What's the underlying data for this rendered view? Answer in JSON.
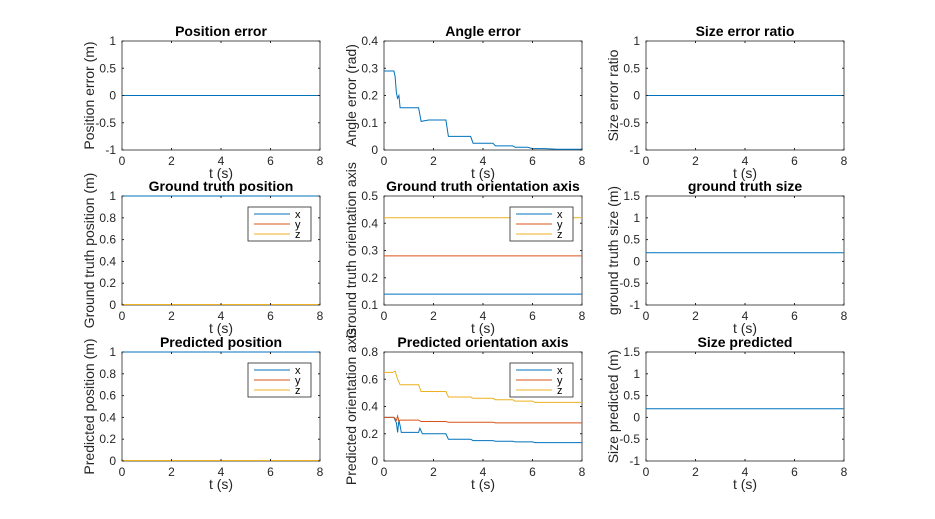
{
  "chart_data": [
    {
      "type": "line",
      "title": "Position error",
      "xlabel": "t (s)",
      "ylabel": "Position error (m)",
      "xlim": [
        0,
        8
      ],
      "ylim": [
        -1,
        1
      ],
      "xticks": [
        0,
        2,
        4,
        6,
        8
      ],
      "yticks": [
        -1,
        -0.5,
        0,
        0.5,
        1
      ],
      "series": [
        {
          "color": "#0072BD",
          "x": [
            0,
            8
          ],
          "y": [
            0,
            0
          ]
        }
      ]
    },
    {
      "type": "line",
      "title": "Angle error",
      "xlabel": "t (s)",
      "ylabel": "Angle error (rad)",
      "xlim": [
        0,
        8
      ],
      "ylim": [
        0,
        0.4
      ],
      "xticks": [
        0,
        2,
        4,
        6,
        8
      ],
      "yticks": [
        0,
        0.1,
        0.2,
        0.3,
        0.4
      ],
      "series": [
        {
          "color": "#0072BD",
          "x": [
            0,
            0.4,
            0.45,
            0.5,
            0.55,
            0.6,
            0.65,
            0.7,
            1.4,
            1.5,
            1.8,
            2.5,
            2.6,
            3.5,
            3.6,
            4.4,
            4.5,
            5.2,
            5.3,
            5.8,
            6.0,
            6.5,
            7.0,
            7.5,
            8.0
          ],
          "y": [
            0.29,
            0.29,
            0.27,
            0.21,
            0.19,
            0.2,
            0.155,
            0.155,
            0.155,
            0.105,
            0.11,
            0.11,
            0.05,
            0.05,
            0.025,
            0.025,
            0.015,
            0.015,
            0.01,
            0.01,
            0.005,
            0.005,
            0.003,
            0.003,
            0.003
          ]
        }
      ]
    },
    {
      "type": "line",
      "title": "Size error ratio",
      "xlabel": "t (s)",
      "ylabel": "Size error ratio",
      "xlim": [
        0,
        8
      ],
      "ylim": [
        -1,
        1
      ],
      "xticks": [
        0,
        2,
        4,
        6,
        8
      ],
      "yticks": [
        -1,
        -0.5,
        0,
        0.5,
        1
      ],
      "series": [
        {
          "color": "#0072BD",
          "x": [
            0,
            8
          ],
          "y": [
            0,
            0
          ]
        }
      ]
    },
    {
      "type": "line",
      "title": "Ground truth position",
      "xlabel": "t (s)",
      "ylabel": "Ground truth position (m)",
      "xlim": [
        0,
        8
      ],
      "ylim": [
        0,
        1
      ],
      "xticks": [
        0,
        2,
        4,
        6,
        8
      ],
      "yticks": [
        0,
        0.2,
        0.4,
        0.6,
        0.8,
        1
      ],
      "legend": "top-right",
      "series": [
        {
          "name": "x",
          "color": "#0072BD",
          "x": [
            0,
            8
          ],
          "y": [
            1,
            1
          ]
        },
        {
          "name": "y",
          "color": "#D95319",
          "x": [
            0,
            8
          ],
          "y": [
            0.005,
            0.005
          ]
        },
        {
          "name": "z",
          "color": "#EDB120",
          "x": [
            0,
            8
          ],
          "y": [
            0.005,
            0.005
          ]
        }
      ]
    },
    {
      "type": "line",
      "title": "Ground truth orientation axis",
      "xlabel": "t (s)",
      "ylabel": "Ground truth orientation axis",
      "xlim": [
        0,
        8
      ],
      "ylim": [
        0.1,
        0.5
      ],
      "xticks": [
        0,
        2,
        4,
        6,
        8
      ],
      "yticks": [
        0.1,
        0.2,
        0.3,
        0.4,
        0.5
      ],
      "legend": "top-right",
      "series": [
        {
          "name": "x",
          "color": "#0072BD",
          "x": [
            0,
            8
          ],
          "y": [
            0.14,
            0.14
          ]
        },
        {
          "name": "y",
          "color": "#D95319",
          "x": [
            0,
            8
          ],
          "y": [
            0.28,
            0.28
          ]
        },
        {
          "name": "z",
          "color": "#EDB120",
          "x": [
            0,
            8
          ],
          "y": [
            0.42,
            0.42
          ]
        }
      ]
    },
    {
      "type": "line",
      "title": "ground truth size",
      "xlabel": "t (s)",
      "ylabel": "ground truth size (m)",
      "xlim": [
        0,
        8
      ],
      "ylim": [
        -1,
        1.5
      ],
      "xticks": [
        0,
        2,
        4,
        6,
        8
      ],
      "yticks": [
        -1,
        -0.5,
        0,
        0.5,
        1,
        1.5
      ],
      "series": [
        {
          "color": "#0072BD",
          "x": [
            0,
            8
          ],
          "y": [
            0.2,
            0.2
          ]
        }
      ]
    },
    {
      "type": "line",
      "title": "Predicted position",
      "xlabel": "t (s)",
      "ylabel": "Predicted position (m)",
      "xlim": [
        0,
        8
      ],
      "ylim": [
        0,
        1
      ],
      "xticks": [
        0,
        2,
        4,
        6,
        8
      ],
      "yticks": [
        0,
        0.2,
        0.4,
        0.6,
        0.8,
        1
      ],
      "legend": "top-right",
      "series": [
        {
          "name": "x",
          "color": "#0072BD",
          "x": [
            0,
            8
          ],
          "y": [
            1,
            1
          ]
        },
        {
          "name": "y",
          "color": "#D95319",
          "x": [
            0,
            8
          ],
          "y": [
            0.005,
            0.005
          ]
        },
        {
          "name": "z",
          "color": "#EDB120",
          "x": [
            0,
            8
          ],
          "y": [
            0.005,
            0.005
          ]
        }
      ]
    },
    {
      "type": "line",
      "title": "Predicted orientation axis",
      "xlabel": "t (s)",
      "ylabel": "Predicted orientation axis",
      "xlim": [
        0,
        8
      ],
      "ylim": [
        0,
        0.8
      ],
      "xticks": [
        0,
        2,
        4,
        6,
        8
      ],
      "yticks": [
        0,
        0.2,
        0.4,
        0.6,
        0.8
      ],
      "legend": "top-right",
      "series": [
        {
          "name": "x",
          "color": "#0072BD",
          "x": [
            0,
            0.4,
            0.5,
            0.55,
            0.6,
            0.65,
            0.7,
            1.4,
            1.45,
            1.55,
            1.8,
            2.5,
            2.6,
            3.5,
            3.6,
            4.4,
            4.5,
            5.2,
            5.3,
            6.0,
            6.1,
            8.0
          ],
          "y": [
            0.32,
            0.32,
            0.28,
            0.21,
            0.3,
            0.26,
            0.21,
            0.21,
            0.24,
            0.2,
            0.2,
            0.2,
            0.16,
            0.16,
            0.15,
            0.15,
            0.145,
            0.145,
            0.14,
            0.14,
            0.135,
            0.135
          ]
        },
        {
          "name": "y",
          "color": "#D95319",
          "x": [
            0,
            0.4,
            0.5,
            0.55,
            0.6,
            0.65,
            1.4,
            1.5,
            2.5,
            2.6,
            4.4,
            4.5,
            8.0
          ],
          "y": [
            0.32,
            0.32,
            0.3,
            0.33,
            0.29,
            0.3,
            0.3,
            0.29,
            0.29,
            0.285,
            0.285,
            0.28,
            0.28
          ]
        },
        {
          "name": "z",
          "color": "#EDB120",
          "x": [
            0,
            0.35,
            0.45,
            0.55,
            0.65,
            1.4,
            1.5,
            2.5,
            2.6,
            3.5,
            3.6,
            4.4,
            4.5,
            5.2,
            5.3,
            6.0,
            6.1,
            8.0
          ],
          "y": [
            0.65,
            0.65,
            0.66,
            0.6,
            0.56,
            0.56,
            0.51,
            0.51,
            0.47,
            0.47,
            0.46,
            0.46,
            0.45,
            0.45,
            0.44,
            0.44,
            0.43,
            0.43
          ]
        }
      ]
    },
    {
      "type": "line",
      "title": "Size predicted",
      "xlabel": "t (s)",
      "ylabel": "Size predicted (m)",
      "xlim": [
        0,
        8
      ],
      "ylim": [
        -1,
        1.5
      ],
      "xticks": [
        0,
        2,
        4,
        6,
        8
      ],
      "yticks": [
        -1,
        -0.5,
        0,
        0.5,
        1,
        1.5
      ],
      "series": [
        {
          "color": "#0072BD",
          "x": [
            0,
            8
          ],
          "y": [
            0.2,
            0.2
          ]
        }
      ]
    }
  ]
}
